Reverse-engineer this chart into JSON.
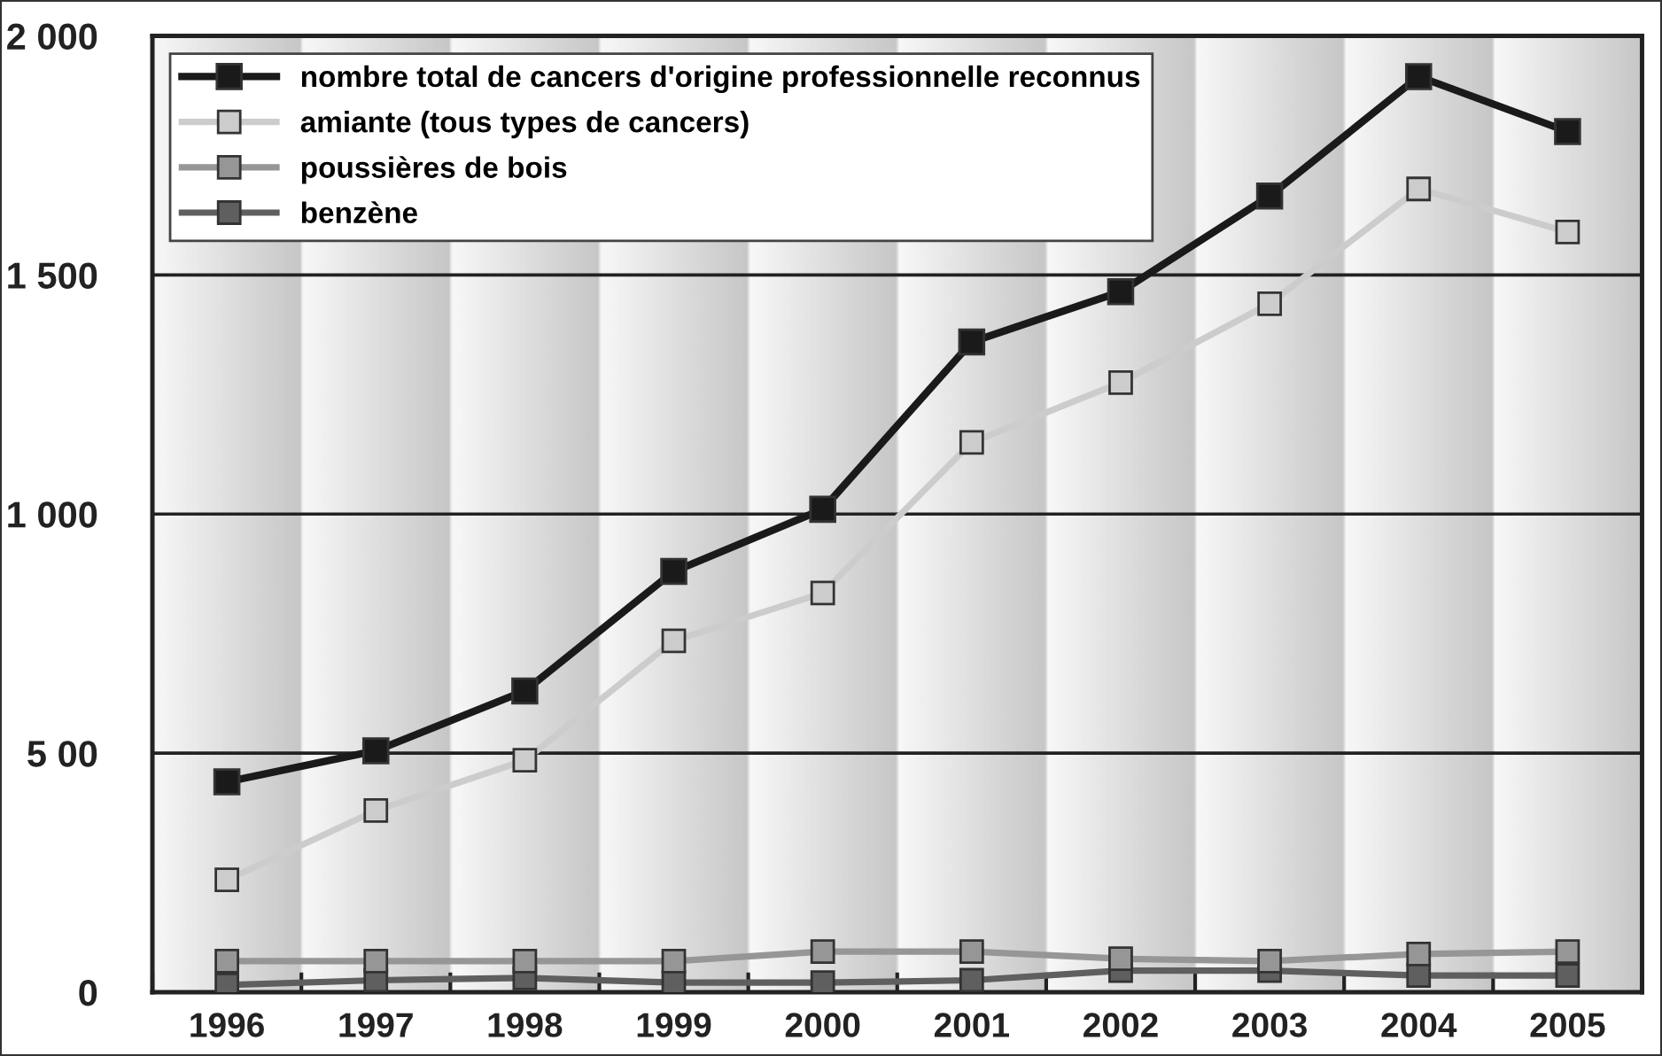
{
  "chart_data": {
    "type": "line",
    "categories": [
      "1996",
      "1997",
      "1998",
      "1999",
      "2000",
      "2001",
      "2002",
      "2003",
      "2004",
      "2005"
    ],
    "ylim": [
      0,
      2000
    ],
    "yticks": [
      0,
      {
        "value": 500,
        "label": "5 00"
      },
      {
        "value": 1000,
        "label": "1 000"
      },
      {
        "value": 1500,
        "label": "1 500"
      },
      {
        "value": 2000,
        "label": "2 000"
      }
    ],
    "grid": "y",
    "legend": "top left",
    "marker": "square",
    "line_style": "solid",
    "series": [
      {
        "name": "nombre total de cancers d'origine professionnelle reconnus",
        "color": "#1a1a1a",
        "values": [
          440,
          505,
          630,
          880,
          1010,
          1360,
          1465,
          1665,
          1915,
          1800
        ]
      },
      {
        "name": "amiante (tous types de cancers)",
        "color": "#cccccc",
        "values": [
          235,
          380,
          485,
          735,
          835,
          1150,
          1275,
          1440,
          1680,
          1590
        ]
      },
      {
        "name": "poussières de bois",
        "color": "#969696",
        "values": [
          65,
          65,
          65,
          65,
          85,
          85,
          70,
          65,
          80,
          85
        ]
      },
      {
        "name": "benzène",
        "color": "#5f5f5f",
        "values": [
          15,
          25,
          30,
          20,
          20,
          25,
          45,
          45,
          35,
          35
        ]
      }
    ]
  }
}
